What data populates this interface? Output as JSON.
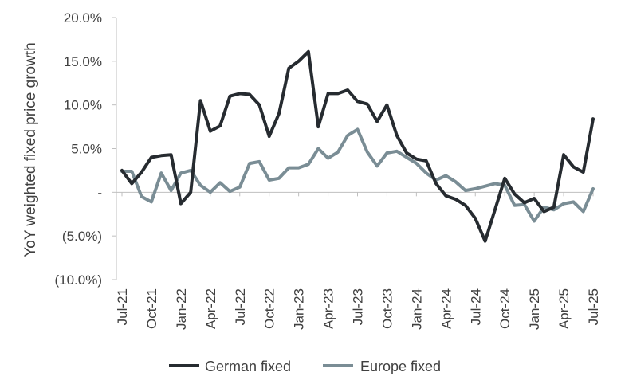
{
  "chart_data": {
    "type": "line",
    "ylabel": "YoY weighted fixed price growth",
    "xlabel": "",
    "ylim": [
      -10,
      20
    ],
    "y_ticks": [
      {
        "value": 20,
        "label": "20.0%"
      },
      {
        "value": 15,
        "label": "15.0%"
      },
      {
        "value": 10,
        "label": "10.0%"
      },
      {
        "value": 5,
        "label": "5.0%"
      },
      {
        "value": 0,
        "label": "-"
      },
      {
        "value": -5,
        "label": "(5.0%)"
      },
      {
        "value": -10,
        "label": "(10.0%)"
      }
    ],
    "x_ticks": [
      {
        "index": 0,
        "label": "Jul-21"
      },
      {
        "index": 3,
        "label": "Oct-21"
      },
      {
        "index": 6,
        "label": "Jan-22"
      },
      {
        "index": 9,
        "label": "Apr-22"
      },
      {
        "index": 12,
        "label": "Jul-22"
      },
      {
        "index": 15,
        "label": "Oct-22"
      },
      {
        "index": 18,
        "label": "Jan-23"
      },
      {
        "index": 21,
        "label": "Apr-23"
      },
      {
        "index": 24,
        "label": "Jul-23"
      },
      {
        "index": 27,
        "label": "Oct-23"
      },
      {
        "index": 30,
        "label": "Jan-24"
      },
      {
        "index": 33,
        "label": "Apr-24"
      },
      {
        "index": 36,
        "label": "Jul-24"
      },
      {
        "index": 39,
        "label": "Oct-24"
      },
      {
        "index": 42,
        "label": "Jan-25"
      },
      {
        "index": 45,
        "label": "Apr-25"
      },
      {
        "index": 48,
        "label": "Jul-25"
      }
    ],
    "categories": [
      "Jul-21",
      "Aug-21",
      "Sep-21",
      "Oct-21",
      "Nov-21",
      "Dec-21",
      "Jan-22",
      "Feb-22",
      "Mar-22",
      "Apr-22",
      "May-22",
      "Jun-22",
      "Jul-22",
      "Aug-22",
      "Sep-22",
      "Oct-22",
      "Nov-22",
      "Dec-22",
      "Jan-23",
      "Feb-23",
      "Mar-23",
      "Apr-23",
      "May-23",
      "Jun-23",
      "Jul-23",
      "Aug-23",
      "Sep-23",
      "Oct-23",
      "Nov-23",
      "Dec-23",
      "Jan-24",
      "Feb-24",
      "Mar-24",
      "Apr-24",
      "May-24",
      "Jun-24",
      "Jul-24",
      "Aug-24",
      "Sep-24",
      "Oct-24",
      "Nov-24",
      "Dec-24",
      "Jan-25",
      "Feb-25",
      "Mar-25",
      "Apr-25",
      "May-25",
      "Jun-25",
      "Jul-25"
    ],
    "series": [
      {
        "name": "German fixed",
        "color": "#262b30",
        "values": [
          2.5,
          1.0,
          2.3,
          4.0,
          4.2,
          4.3,
          -1.3,
          0.0,
          10.5,
          7.0,
          7.6,
          11.0,
          11.3,
          11.2,
          10.0,
          6.4,
          9.0,
          14.2,
          15.0,
          16.1,
          7.5,
          11.3,
          11.3,
          11.7,
          10.4,
          10.1,
          8.1,
          10.0,
          6.5,
          4.5,
          3.8,
          3.6,
          1.0,
          -0.4,
          -0.8,
          -1.5,
          -3.0,
          -5.6,
          -2.0,
          1.6,
          -0.2,
          -1.2,
          -0.7,
          -2.2,
          -1.7,
          4.3,
          2.9,
          2.3,
          8.4
        ]
      },
      {
        "name": "Europe fixed",
        "color": "#7a8d95",
        "values": [
          2.4,
          2.4,
          -0.5,
          -1.1,
          2.2,
          0.2,
          2.2,
          2.5,
          0.8,
          0.0,
          1.1,
          0.1,
          0.6,
          3.3,
          3.5,
          1.4,
          1.6,
          2.8,
          2.8,
          3.2,
          5.0,
          3.9,
          4.6,
          6.5,
          7.2,
          4.6,
          3.0,
          4.5,
          4.7,
          4.0,
          3.3,
          2.2,
          1.4,
          1.9,
          1.2,
          0.2,
          0.4,
          0.7,
          1.0,
          0.8,
          -1.5,
          -1.4,
          -3.3,
          -1.7,
          -2.0,
          -1.3,
          -1.1,
          -2.2,
          0.4
        ]
      }
    ],
    "legend": {
      "placement": "bottom"
    },
    "grid": false
  }
}
